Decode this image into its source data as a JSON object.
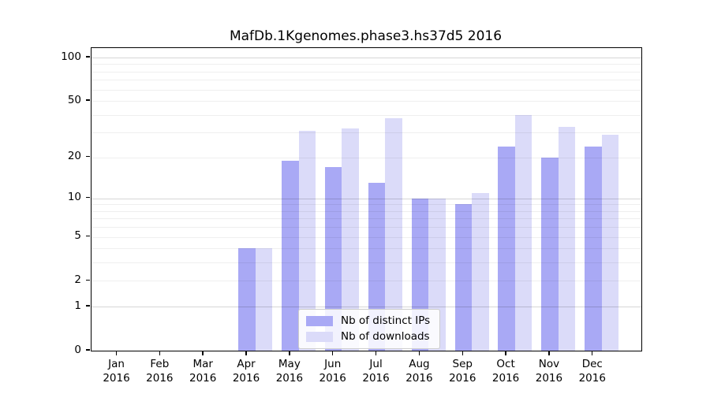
{
  "chart_data": {
    "type": "bar",
    "title": "MafDb.1Kgenomes.phase3.hs37d5 2016",
    "yscale": "log1p",
    "grid": "on",
    "legend_position": "lower center",
    "categories": [
      "Jan",
      "Feb",
      "Mar",
      "Apr",
      "May",
      "Jun",
      "Jul",
      "Aug",
      "Sep",
      "Oct",
      "Nov",
      "Dec"
    ],
    "year": "2016",
    "series": [
      {
        "name": "Nb of distinct IPs",
        "color": "#a9a9f5",
        "values": [
          0,
          0,
          0,
          4,
          19,
          17,
          13,
          10,
          9,
          24,
          20,
          24
        ]
      },
      {
        "name": "Nb of downloads",
        "color": "#dbdbf9",
        "values": [
          0,
          0,
          0,
          4,
          31,
          32,
          38,
          10,
          11,
          40,
          33,
          29
        ]
      }
    ],
    "ytick_labels": [
      "0",
      "1",
      "2",
      "5",
      "10",
      "20",
      "50",
      "100"
    ],
    "yticks": [
      0,
      1,
      2,
      5,
      10,
      20,
      50,
      100
    ],
    "ylim": [
      0,
      116
    ]
  },
  "colors": {
    "axis": "#000000",
    "grid_major": "#d6d6d6",
    "grid_minor": "#f0f0f0",
    "legend_border": "#cccccc",
    "legend_bg": "#ffffff"
  }
}
